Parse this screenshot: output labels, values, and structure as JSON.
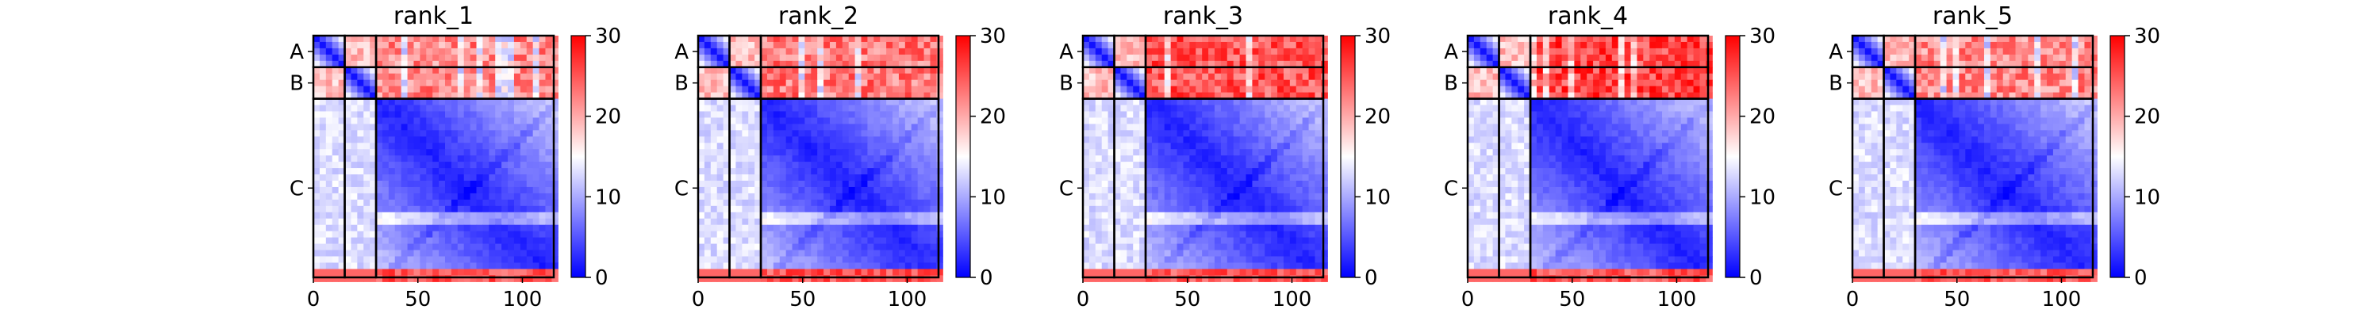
{
  "chart_data": {
    "type": "heatmap",
    "description_colors": {
      "low": "#0000ff",
      "mid": "#ffffff",
      "high": "#ff0000"
    },
    "colorbar": {
      "range": [
        0,
        30
      ],
      "ticks": [
        "0",
        "10",
        "20",
        "30"
      ]
    },
    "x_axis": {
      "range": [
        0,
        115
      ],
      "ticks": [
        "0",
        "50",
        "100"
      ],
      "tick_values": [
        0,
        50,
        100
      ]
    },
    "chains": [
      {
        "label": "A",
        "start": 0,
        "end": 15
      },
      {
        "label": "B",
        "start": 15,
        "end": 30
      },
      {
        "label": "C",
        "start": 30,
        "end": 115
      }
    ],
    "panels": [
      {
        "title": "rank_1",
        "chain_ab_error": 22,
        "chain_c_to_ab_error": 13
      },
      {
        "title": "rank_2",
        "chain_ab_error": 23,
        "chain_c_to_ab_error": 13
      },
      {
        "title": "rank_3",
        "chain_ab_error": 25,
        "chain_c_to_ab_error": 13
      },
      {
        "title": "rank_4",
        "chain_ab_error": 26,
        "chain_c_to_ab_error": 13
      },
      {
        "title": "rank_5",
        "chain_ab_error": 22,
        "chain_c_to_ab_error": 13
      }
    ]
  }
}
